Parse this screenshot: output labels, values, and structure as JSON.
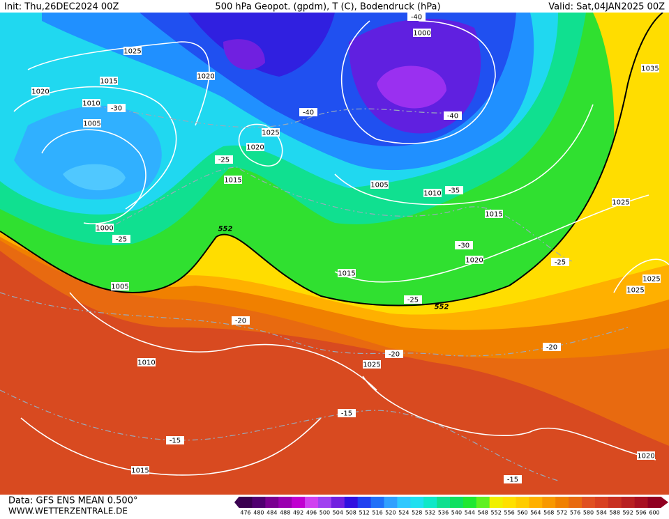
{
  "header": {
    "init": "Init: Thu,26DEC2024 00Z",
    "title": "500 hPa Geopot. (gpdm), T (C), Bodendruck (hPa)",
    "valid": "Valid: Sat,04JAN2025 00Z"
  },
  "contours": {
    "pressure": [
      1025,
      1020,
      1020,
      1015,
      1010,
      1005,
      1025,
      1020,
      1015,
      1000,
      1005,
      1010,
      1025,
      1015,
      1000,
      1035,
      1005,
      1010,
      1015,
      1020,
      1025,
      1025,
      1025,
      1015,
      1020
    ],
    "temperature": [
      -40,
      -30,
      -40,
      -40,
      -25,
      -35,
      -25,
      -30,
      -25,
      -25,
      -20,
      -20,
      -20,
      -15,
      -15,
      -15
    ],
    "geopotential": [
      552,
      552
    ]
  },
  "colorbar": {
    "values": [
      476,
      480,
      484,
      488,
      492,
      496,
      500,
      504,
      508,
      512,
      516,
      520,
      524,
      528,
      532,
      536,
      540,
      544,
      548,
      552,
      556,
      560,
      564,
      568,
      572,
      576,
      580,
      584,
      588,
      592,
      596,
      600
    ],
    "colors": [
      "#3a0050",
      "#500070",
      "#7a0090",
      "#9a00b0",
      "#c000d0",
      "#d040f0",
      "#a040f0",
      "#7020e0",
      "#3010e0",
      "#2040f0",
      "#2070f8",
      "#30a0ff",
      "#30c8ff",
      "#20e0f0",
      "#10e8c8",
      "#10e090",
      "#10e060",
      "#20e830",
      "#60f020",
      "#f0f000",
      "#ffe000",
      "#ffcc00",
      "#ffb000",
      "#f89800",
      "#f08000",
      "#e86a10",
      "#e05020",
      "#d84020",
      "#c83020",
      "#b82020",
      "#a81020",
      "#900020"
    ]
  },
  "footer": {
    "source": "Data: GFS ENS MEAN 0.500°",
    "site": "WWW.WETTERZENTRALE.DE"
  }
}
